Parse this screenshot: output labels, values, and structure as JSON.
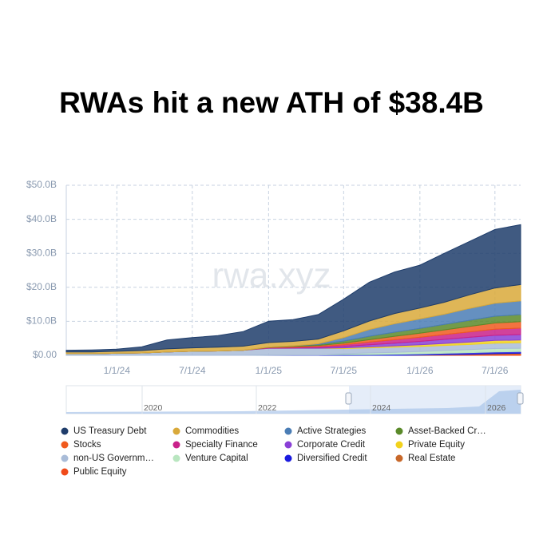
{
  "chart_data": {
    "type": "stacked-area",
    "title": "RWAs hit a new ATH of $38.4B",
    "watermark": "rwa.xyz",
    "x": [
      "9/1/23",
      "11/1/23",
      "1/1/24",
      "3/1/24",
      "5/1/24",
      "7/1/24",
      "9/1/24",
      "11/1/24",
      "1/1/25",
      "3/1/25",
      "5/1/25",
      "7/1/25",
      "9/1/25",
      "11/1/25",
      "1/1/26",
      "3/1/26",
      "5/1/26",
      "7/1/26",
      "9/1/26"
    ],
    "xlim": [
      "9/1/23",
      "9/1/26"
    ],
    "xticks": [
      "1/1/24",
      "7/1/24",
      "1/1/25",
      "7/1/25",
      "1/1/26",
      "7/1/26"
    ],
    "ylim": [
      0,
      50
    ],
    "yticks": [
      {
        "value": 0,
        "label": "$0.00"
      },
      {
        "value": 10,
        "label": "$10.0B"
      },
      {
        "value": 20,
        "label": "$20.0B"
      },
      {
        "value": 30,
        "label": "$30.0B"
      },
      {
        "value": 40,
        "label": "$40.0B"
      },
      {
        "value": 50,
        "label": "$50.0B"
      }
    ],
    "grid": true,
    "navigator_labels": [
      "2020",
      "2022",
      "2024",
      "2026"
    ],
    "series": [
      {
        "name": "US Treasury Debt",
        "color": "#1f3d6b",
        "values": [
          0.5,
          0.6,
          0.6,
          1.1,
          2.6,
          3,
          3.4,
          4.3,
          6.3,
          6.4,
          7.2,
          9.3,
          11.4,
          12.2,
          12.6,
          14.4,
          15.7,
          17.2,
          17.6
        ]
      },
      {
        "name": "Commodities",
        "color": "#d9a93a",
        "values": [
          0.5,
          0.5,
          0.6,
          0.7,
          0.9,
          1,
          1.1,
          1.2,
          1.3,
          1.3,
          1.4,
          2,
          2.5,
          3,
          3.2,
          3.5,
          4,
          4.5,
          4.8
        ]
      },
      {
        "name": "Active Strategies",
        "color": "#4a7db5",
        "values": [
          0,
          0,
          0,
          0,
          0,
          0,
          0,
          0,
          0,
          0,
          0.2,
          1,
          2,
          2.5,
          2.8,
          3,
          3.5,
          3.8,
          4
        ]
      },
      {
        "name": "Asset-Backed Cr…",
        "color": "#5a8a2a",
        "values": [
          0,
          0,
          0,
          0,
          0,
          0,
          0,
          0,
          0.1,
          0.2,
          0.3,
          0.6,
          1,
          1.2,
          1.4,
          1.6,
          1.8,
          2,
          2.1
        ]
      },
      {
        "name": "Stocks",
        "color": "#f05a1e",
        "values": [
          0,
          0,
          0,
          0,
          0,
          0,
          0,
          0,
          0.1,
          0.2,
          0.3,
          0.5,
          0.7,
          1,
          1.2,
          1.4,
          1.6,
          1.8,
          1.9
        ]
      },
      {
        "name": "Specialty Finance",
        "color": "#c9218a",
        "values": [
          0,
          0,
          0,
          0,
          0,
          0,
          0,
          0,
          0.1,
          0.2,
          0.3,
          0.5,
          0.8,
          1,
          1.2,
          1.4,
          1.6,
          1.8,
          1.9
        ]
      },
      {
        "name": "Corporate Credit",
        "color": "#8a3fd6",
        "values": [
          0,
          0,
          0,
          0,
          0,
          0,
          0,
          0,
          0.1,
          0.1,
          0.2,
          0.4,
          0.6,
          0.8,
          1,
          1.2,
          1.4,
          1.5,
          1.6
        ]
      },
      {
        "name": "Private Equity",
        "color": "#f2d21c",
        "values": [
          0,
          0,
          0,
          0,
          0,
          0,
          0,
          0,
          0,
          0,
          0,
          0.2,
          0.3,
          0.4,
          0.5,
          0.6,
          0.7,
          0.8,
          0.8
        ]
      },
      {
        "name": "non-US Governm…",
        "color": "#a9bcd8",
        "values": [
          0.5,
          0.5,
          0.6,
          0.7,
          1,
          1.2,
          1.3,
          1.5,
          2,
          2,
          2,
          1.5,
          1.5,
          1.5,
          1.5,
          1.5,
          1.5,
          1.6,
          1.6
        ]
      },
      {
        "name": "Venture Capital",
        "color": "#b9e6c0",
        "values": [
          0,
          0,
          0,
          0,
          0,
          0,
          0,
          0,
          0,
          0,
          0,
          0.3,
          0.5,
          0.6,
          0.7,
          0.8,
          0.9,
          1,
          1
        ]
      },
      {
        "name": "Diversified Credit",
        "color": "#1a1adf",
        "values": [
          0,
          0,
          0,
          0,
          0,
          0,
          0,
          0,
          0.05,
          0.1,
          0.1,
          0.2,
          0.2,
          0.3,
          0.3,
          0.4,
          0.5,
          0.5,
          0.5
        ]
      },
      {
        "name": "Real Estate",
        "color": "#c8682a",
        "values": [
          0,
          0,
          0,
          0,
          0,
          0,
          0,
          0,
          0,
          0,
          0,
          0,
          0,
          0,
          0.1,
          0.1,
          0.1,
          0.2,
          0.2
        ]
      },
      {
        "name": "Public Equity",
        "color": "#f04a1a",
        "values": [
          0,
          0,
          0,
          0,
          0,
          0,
          0,
          0,
          0,
          0,
          0,
          0,
          0,
          0,
          0,
          0.1,
          0.2,
          0.3,
          0.4
        ]
      }
    ]
  }
}
